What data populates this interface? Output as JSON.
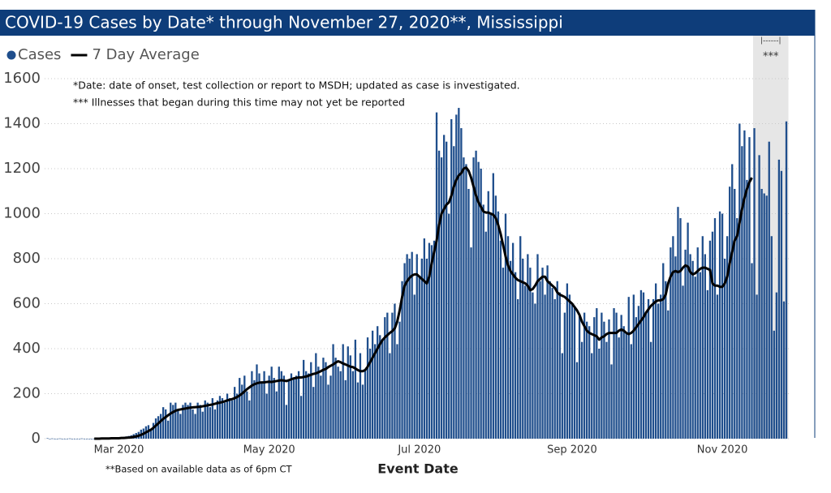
{
  "chart_data": {
    "type": "bar",
    "title": "COVID-19 Cases by Date* through November 27, 2020**, Mississippi",
    "notes": [
      "*Date: date of onset, test collection or report to MSDH; updated as case is investigated.",
      "*** Illnesses that began during this time may not yet be reported"
    ],
    "footnote": "**Based on available data as of 6pm CT",
    "x_label": "Event Date",
    "shade": {
      "bracket": "|------|",
      "text": "***",
      "color": "#e6e6e6"
    },
    "ylim": [
      0,
      1600
    ],
    "yticks": [
      0,
      200,
      400,
      600,
      800,
      1000,
      1200,
      1400,
      1600
    ],
    "grid": true,
    "categories": [
      null,
      null,
      null,
      null,
      null,
      null,
      null,
      null,
      null,
      null,
      null,
      null,
      null,
      null,
      null,
      null,
      null,
      null,
      null,
      null,
      null,
      null,
      null,
      null,
      null,
      null,
      null,
      null,
      null,
      "Mar 2020",
      null,
      null,
      null,
      null,
      null,
      null,
      null,
      null,
      null,
      null,
      null,
      null,
      null,
      null,
      null,
      null,
      null,
      null,
      null,
      null,
      null,
      null,
      null,
      null,
      null,
      null,
      null,
      null,
      null,
      null,
      null,
      null,
      null,
      null,
      null,
      null,
      null,
      null,
      null,
      null,
      null,
      null,
      null,
      null,
      null,
      null,
      null,
      null,
      null,
      null,
      null,
      null,
      null,
      null,
      null,
      null,
      null,
      null,
      null,
      null,
      "May 2020",
      null,
      null,
      null,
      null,
      null,
      null,
      null,
      null,
      null,
      null,
      null,
      null,
      null,
      null,
      null,
      null,
      null,
      null,
      null,
      null,
      null,
      null,
      null,
      null,
      null,
      null,
      null,
      null,
      null,
      null,
      null,
      null,
      null,
      null,
      null,
      null,
      null,
      null,
      null,
      null,
      null,
      null,
      null,
      null,
      null,
      null,
      null,
      null,
      null,
      null,
      null,
      null,
      null,
      null,
      null,
      null,
      null,
      null,
      null,
      null,
      "Jul 2020",
      null,
      null,
      null,
      null,
      null,
      null,
      null,
      null,
      null,
      null,
      null,
      null,
      null,
      null,
      null,
      null,
      null,
      null,
      null,
      null,
      null,
      null,
      null,
      null,
      null,
      null,
      null,
      null,
      null,
      null,
      null,
      null,
      null,
      null,
      null,
      null,
      null,
      null,
      null,
      null,
      null,
      null,
      null,
      null,
      null,
      null,
      null,
      null,
      null,
      null,
      null,
      null,
      null,
      null,
      null,
      null,
      null,
      null,
      null,
      null,
      null,
      "Sep 2020",
      null,
      null,
      null,
      null,
      null,
      null,
      null,
      null,
      null,
      null,
      null,
      null,
      null,
      null,
      null,
      null,
      null,
      null,
      null,
      null,
      null,
      null,
      null,
      null,
      null,
      null,
      null,
      null,
      null,
      null,
      null,
      null,
      null,
      null,
      null,
      null,
      null,
      null,
      null,
      null,
      null,
      null,
      null,
      null,
      null,
      null,
      null,
      null,
      null,
      null,
      null,
      null,
      null,
      null,
      null,
      null,
      null,
      null,
      null,
      null,
      "Nov 2020",
      null,
      null,
      null,
      null,
      null,
      null,
      null,
      null,
      null,
      null,
      null,
      null,
      null,
      null,
      null,
      null,
      null,
      null,
      null,
      null,
      null,
      null,
      null,
      null,
      null,
      null
    ],
    "series": [
      {
        "name": "Cases",
        "type": "bar",
        "color": "#1f4e8c",
        "values": [
          2,
          0,
          1,
          0,
          0,
          1,
          0,
          0,
          0,
          1,
          0,
          0,
          0,
          0,
          1,
          0,
          0,
          0,
          0,
          0,
          1,
          1,
          2,
          1,
          2,
          3,
          2,
          3,
          4,
          5,
          6,
          8,
          10,
          12,
          15,
          20,
          25,
          30,
          40,
          45,
          55,
          60,
          40,
          70,
          90,
          100,
          110,
          140,
          130,
          80,
          160,
          150,
          160,
          130,
          110,
          150,
          160,
          150,
          160,
          130,
          110,
          160,
          150,
          120,
          170,
          160,
          140,
          180,
          130,
          170,
          190,
          180,
          160,
          200,
          180,
          170,
          230,
          200,
          270,
          240,
          280,
          210,
          170,
          300,
          260,
          330,
          290,
          250,
          300,
          200,
          280,
          320,
          270,
          210,
          320,
          300,
          280,
          150,
          260,
          290,
          270,
          280,
          300,
          190,
          350,
          300,
          290,
          340,
          230,
          380,
          320,
          280,
          360,
          340,
          240,
          280,
          420,
          360,
          320,
          300,
          420,
          260,
          410,
          370,
          300,
          440,
          250,
          380,
          240,
          300,
          450,
          400,
          480,
          420,
          500,
          460,
          440,
          540,
          560,
          380,
          560,
          600,
          420,
          520,
          700,
          780,
          820,
          800,
          830,
          640,
          820,
          720,
          800,
          890,
          800,
          870,
          860,
          880,
          1450,
          1280,
          1250,
          1350,
          1320,
          1000,
          1420,
          1300,
          1440,
          1470,
          1380,
          1250,
          1220,
          1110,
          850,
          1250,
          1280,
          1230,
          1200,
          1040,
          920,
          1100,
          1000,
          1180,
          1080,
          1010,
          880,
          760,
          1000,
          900,
          790,
          870,
          740,
          620,
          900,
          800,
          680,
          820,
          760,
          650,
          600,
          820,
          700,
          760,
          640,
          770,
          700,
          670,
          620,
          700,
          650,
          380,
          560,
          690,
          640,
          600,
          580,
          340,
          550,
          430,
          560,
          520,
          500,
          380,
          540,
          580,
          400,
          560,
          520,
          430,
          530,
          330,
          580,
          560,
          450,
          550,
          500,
          470,
          630,
          420,
          640,
          540,
          590,
          660,
          650,
          560,
          620,
          430,
          620,
          690,
          600,
          640,
          780,
          700,
          570,
          850,
          900,
          810,
          1030,
          980,
          680,
          840,
          960,
          820,
          790,
          720,
          850,
          740,
          900,
          820,
          660,
          880,
          920,
          980,
          640,
          1010,
          1000,
          800,
          900,
          1120,
          1220,
          1110,
          980,
          1400,
          1300,
          1370,
          1150,
          1340,
          780,
          1380,
          640,
          1260,
          1110,
          1090,
          1080,
          1320,
          900,
          480,
          650,
          1240,
          1190,
          610,
          1410
        ]
      },
      {
        "name": "7 Day Average",
        "type": "line",
        "color": "#000000",
        "values": [
          null,
          null,
          null,
          null,
          null,
          null,
          null,
          null,
          null,
          null,
          null,
          null,
          null,
          null,
          null,
          null,
          null,
          null,
          null,
          0,
          0,
          0,
          1,
          1,
          1,
          1,
          2,
          2,
          2,
          2,
          3,
          3,
          4,
          5,
          6,
          8,
          10,
          13,
          17,
          22,
          28,
          34,
          40,
          48,
          58,
          68,
          78,
          88,
          96,
          104,
          112,
          118,
          124,
          128,
          130,
          132,
          134,
          136,
          138,
          139,
          140,
          141,
          142,
          144,
          146,
          148,
          150,
          152,
          155,
          158,
          160,
          163,
          166,
          170,
          173,
          176,
          180,
          185,
          192,
          200,
          210,
          220,
          228,
          236,
          242,
          246,
          249,
          250,
          250,
          252,
          253,
          252,
          254,
          256,
          258,
          260,
          258,
          256,
          260,
          264,
          268,
          270,
          272,
          272,
          274,
          276,
          280,
          284,
          288,
          290,
          295,
          300,
          306,
          310,
          318,
          324,
          330,
          338,
          344,
          340,
          334,
          330,
          325,
          320,
          318,
          312,
          305,
          300,
          300,
          305,
          320,
          340,
          360,
          380,
          400,
          420,
          438,
          450,
          460,
          470,
          478,
          490,
          520,
          570,
          630,
          680,
          700,
          715,
          725,
          730,
          730,
          720,
          710,
          700,
          690,
          720,
          780,
          830,
          880,
          950,
          1000,
          1020,
          1040,
          1050,
          1080,
          1120,
          1150,
          1170,
          1180,
          1200,
          1205,
          1190,
          1160,
          1120,
          1080,
          1050,
          1030,
          1010,
          1005,
          1005,
          1000,
          995,
          980,
          950,
          910,
          860,
          810,
          770,
          745,
          730,
          715,
          705,
          700,
          695,
          690,
          680,
          660,
          665,
          680,
          700,
          710,
          720,
          720,
          700,
          690,
          680,
          670,
          650,
          640,
          635,
          630,
          620,
          610,
          600,
          585,
          570,
          550,
          520,
          500,
          480,
          470,
          465,
          460,
          455,
          440,
          450,
          455,
          465,
          470,
          470,
          470,
          470,
          480,
          485,
          480,
          470,
          465,
          470,
          480,
          495,
          510,
          525,
          540,
          560,
          575,
          590,
          600,
          610,
          615,
          615,
          620,
          640,
          690,
          720,
          740,
          745,
          740,
          745,
          760,
          770,
          765,
          740,
          730,
          735,
          745,
          755,
          760,
          760,
          755,
          750,
          690,
          680,
          680,
          675,
          675,
          690,
          720,
          780,
          830,
          880,
          900,
          960,
          1020,
          1070,
          1110,
          1140,
          1160,
          null,
          null,
          null,
          null,
          null,
          null,
          null,
          null,
          null,
          null,
          null,
          null,
          null,
          null
        ]
      }
    ]
  }
}
